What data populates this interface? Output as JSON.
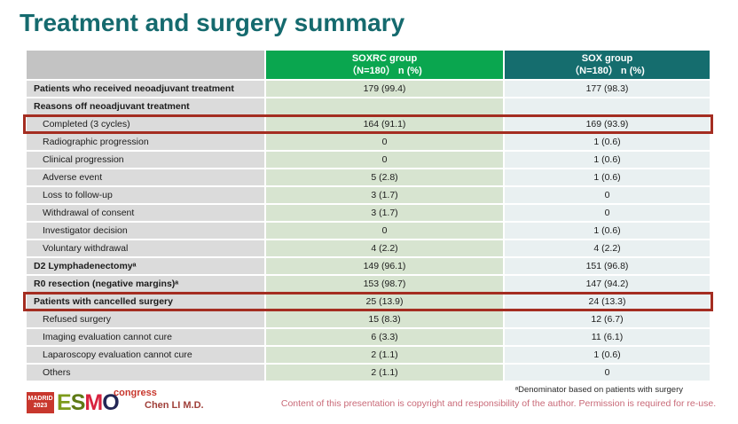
{
  "title": "Treatment and surgery summary",
  "colors": {
    "title_text": "#156a6e",
    "soxrc_header": "#0aa64f",
    "sox_header": "#156d6e",
    "header_gray": "#c3c3c3",
    "label_cell": "#dbdbdb",
    "soxrc_cell": "#d7e4d0",
    "sox_cell": "#e9f0f1",
    "highlight_border": "#a42d21",
    "copyright_text": "#c96a78",
    "author_text": "#a0403a",
    "logo_red": "#c8372d"
  },
  "table": {
    "header": {
      "col1_line1": "SOXRC group",
      "col1_line2": "（N=180） n (%)",
      "col2_line1": "SOX group",
      "col2_line2": "（N=180） n (%)"
    },
    "rows": [
      {
        "label": "Patients who received neoadjuvant treatment",
        "soxrc": "179 (99.4)",
        "sox": "177 (98.3)",
        "bold": true
      },
      {
        "label": "Reasons off neoadjuvant treatment",
        "soxrc": "",
        "sox": "",
        "bold": true
      },
      {
        "label": "Completed (3 cycles)",
        "soxrc": "164 (91.1)",
        "sox": "169 (93.9)",
        "indent": true,
        "highlight": true
      },
      {
        "label": "Radiographic progression",
        "soxrc": "0",
        "sox": "1 (0.6)",
        "indent": true
      },
      {
        "label": "Clinical progression",
        "soxrc": "0",
        "sox": "1 (0.6)",
        "indent": true
      },
      {
        "label": "Adverse event",
        "soxrc": "5 (2.8)",
        "sox": "1 (0.6)",
        "indent": true
      },
      {
        "label": "Loss to follow-up",
        "soxrc": "3 (1.7)",
        "sox": "0",
        "indent": true
      },
      {
        "label": "Withdrawal of consent",
        "soxrc": "3 (1.7)",
        "sox": "0",
        "indent": true
      },
      {
        "label": "Investigator decision",
        "soxrc": "0",
        "sox": "1 (0.6)",
        "indent": true
      },
      {
        "label": "Voluntary withdrawal",
        "soxrc": "4 (2.2)",
        "sox": "4 (2.2)",
        "indent": true
      },
      {
        "label": "D2 Lymphadenectomyᵃ",
        "soxrc": "149 (96.1)",
        "sox": "151 (96.8)",
        "bold": true
      },
      {
        "label": "R0 resection (negative margins)ᵃ",
        "soxrc": "153 (98.7)",
        "sox": "147 (94.2)",
        "bold": true
      },
      {
        "label": "Patients with cancelled surgery",
        "soxrc": "25 (13.9)",
        "sox": "24 (13.3)",
        "bold": true,
        "highlight": true
      },
      {
        "label": "Refused surgery",
        "soxrc": "15 (8.3)",
        "sox": "12 (6.7)",
        "indent": true
      },
      {
        "label": "Imaging evaluation cannot cure",
        "soxrc": "6 (3.3)",
        "sox": "11 (6.1)",
        "indent": true
      },
      {
        "label": "Laparoscopy evaluation cannot cure",
        "soxrc": "2 (1.1)",
        "sox": "1 (0.6)",
        "indent": true
      },
      {
        "label": "Others",
        "soxrc": "2 (1.1)",
        "sox": "0",
        "indent": true
      }
    ]
  },
  "footer": {
    "footnote": "ᵃDenominator based on patients with surgery",
    "copyright": "Content of this presentation is copyright and responsibility of the author. Permission is required for re-use.",
    "author": "Chen LI M.D.",
    "logo": {
      "badge_line1": "MADRID",
      "badge_line2": "2023",
      "letter_e": "E",
      "letter_s": "S",
      "letter_m": "M",
      "letter_o": "O",
      "congress": "congress"
    }
  }
}
